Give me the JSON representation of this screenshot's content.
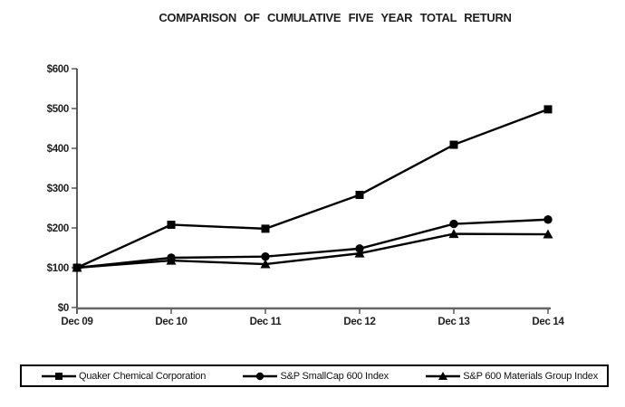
{
  "chart_data": {
    "type": "line",
    "title": "COMPARISON OF CUMULATIVE FIVE YEAR TOTAL RETURN",
    "categories": [
      "Dec 09",
      "Dec 10",
      "Dec 11",
      "Dec 12",
      "Dec 13",
      "Dec 14"
    ],
    "series": [
      {
        "name": "Quaker Chemical Corporation",
        "marker": "square",
        "values": [
          100,
          208,
          198,
          283,
          409,
          498
        ]
      },
      {
        "name": "S&P SmallCap 600 Index",
        "marker": "circle",
        "values": [
          100,
          125,
          128,
          148,
          210,
          221
        ]
      },
      {
        "name": "S&P 600 Materials Group Index",
        "marker": "triangle",
        "values": [
          100,
          118,
          109,
          136,
          185,
          184
        ]
      }
    ],
    "xlabel": "",
    "ylabel": "",
    "ylim": [
      0,
      600
    ],
    "ytick_step": 100,
    "ytick_labels": [
      "$0",
      "$100",
      "$200",
      "$300",
      "$400",
      "$500",
      "$600"
    ],
    "grid": false,
    "legend_position": "bottom",
    "colors": {
      "series_line": "#000000",
      "y_axis": "#333333",
      "x_axis": "#666666",
      "text": "#1f1f1f",
      "background": "#ffffff"
    }
  }
}
